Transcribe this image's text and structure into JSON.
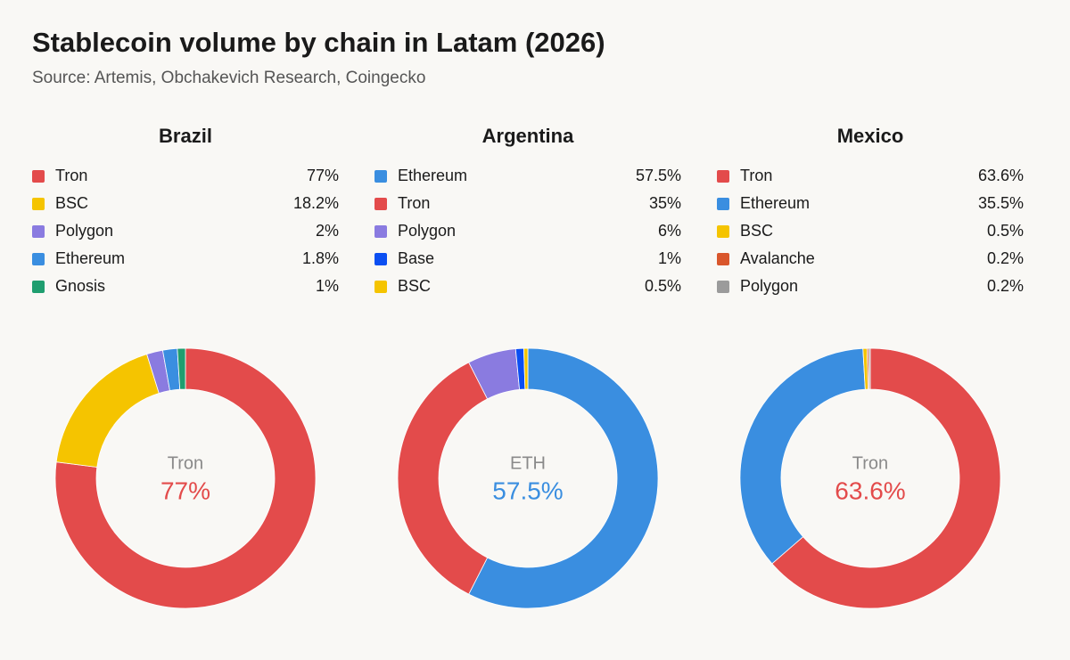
{
  "title": "Stablecoin volume by chain in Latam (2026)",
  "subtitle": "Source: Artemis, Obchakevich Research, Coingecko",
  "chart_data": [
    {
      "type": "donut",
      "title": "Brazil",
      "categories": [
        "Tron",
        "BSC",
        "Polygon",
        "Ethereum",
        "Gnosis"
      ],
      "values": [
        77,
        18.2,
        2,
        1.8,
        1
      ],
      "value_labels": [
        "77%",
        "18.2%",
        "2%",
        "1.8%",
        "1%"
      ],
      "colors": [
        "#e34b4b",
        "#f5c400",
        "#8a7be0",
        "#3a8ee0",
        "#1f9e6f"
      ],
      "center_label": "Tron"
    },
    {
      "type": "donut",
      "title": "Argentina",
      "categories": [
        "Ethereum",
        "Tron",
        "Polygon",
        "Base",
        "BSC"
      ],
      "values": [
        57.5,
        35,
        6,
        1,
        0.5
      ],
      "value_labels": [
        "57.5%",
        "35%",
        "6%",
        "1%",
        "0.5%"
      ],
      "colors": [
        "#3a8ee0",
        "#e34b4b",
        "#8a7be0",
        "#0b4ff2",
        "#f5c400"
      ],
      "center_label": "ETH"
    },
    {
      "type": "donut",
      "title": "Mexico",
      "categories": [
        "Tron",
        "Ethereum",
        "BSC",
        "Avalanche",
        "Polygon"
      ],
      "values": [
        63.6,
        35.5,
        0.5,
        0.2,
        0.2
      ],
      "value_labels": [
        "63.6%",
        "35.5%",
        "0.5%",
        "0.2%",
        "0.2%"
      ],
      "colors": [
        "#e34b4b",
        "#3a8ee0",
        "#f5c400",
        "#d9562b",
        "#9b9b9b"
      ],
      "center_label": "Tron"
    }
  ]
}
